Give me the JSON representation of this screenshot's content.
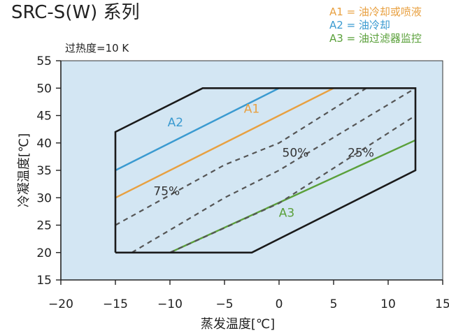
{
  "chart_data": {
    "type": "line",
    "title": "SRC-S(W) 系列",
    "xlabel": "蒸发温度[℃]",
    "ylabel": "冷凝温度[℃]",
    "xlim": [
      -20,
      15
    ],
    "ylim": [
      15,
      55
    ],
    "xticks": [
      -20,
      -15,
      -10,
      -5,
      0,
      5,
      10,
      15
    ],
    "yticks": [
      15,
      20,
      25,
      30,
      35,
      40,
      45,
      50,
      55
    ],
    "grid": false,
    "note": "过热度=10 K",
    "legend": {
      "position": "top-right",
      "items": [
        {
          "text": "A1 = 油冷却或喷液",
          "color": "#e8a040"
        },
        {
          "text": "A2 = 油冷却",
          "color": "#3a9ad0"
        },
        {
          "text": "A3 = 油过滤器监控",
          "color": "#5aa03a"
        }
      ]
    },
    "envelope": {
      "color": "#1a1a1a",
      "points": [
        [
          -15,
          20
        ],
        [
          -2.5,
          20
        ],
        [
          12.5,
          35
        ],
        [
          12.5,
          50
        ],
        [
          -7,
          50
        ],
        [
          -15,
          42
        ],
        [
          -15,
          20
        ]
      ]
    },
    "series": [
      {
        "name": "A2",
        "color": "#3a9ad0",
        "style": "solid",
        "points": [
          [
            -15,
            35
          ],
          [
            0,
            50
          ]
        ],
        "label_at": [
          -9.5,
          43
        ]
      },
      {
        "name": "A1",
        "color": "#e8a040",
        "style": "solid",
        "points": [
          [
            -15,
            30
          ],
          [
            5,
            50
          ]
        ],
        "label_at": [
          -2.5,
          45.5
        ]
      },
      {
        "name": "A3",
        "color": "#5aa03a",
        "style": "solid",
        "points": [
          [
            -10,
            20
          ],
          [
            12.5,
            40.5
          ]
        ],
        "label_at": [
          0.7,
          26.5
        ]
      },
      {
        "name": "75%",
        "color": "#555555",
        "style": "dashed",
        "points": [
          [
            -15,
            25
          ],
          [
            -5,
            36
          ],
          [
            0,
            40
          ],
          [
            8,
            50
          ]
        ],
        "label_at": [
          -10.3,
          30.5
        ]
      },
      {
        "name": "50%",
        "color": "#555555",
        "style": "dashed",
        "points": [
          [
            -13.5,
            20
          ],
          [
            -5,
            30
          ],
          [
            0,
            35
          ],
          [
            12.5,
            50
          ]
        ],
        "label_at": [
          1.5,
          37.5
        ]
      },
      {
        "name": "25%",
        "color": "#555555",
        "style": "dashed",
        "points": [
          [
            -10,
            20
          ],
          [
            0,
            29
          ],
          [
            12.5,
            45
          ]
        ],
        "label_at": [
          7.5,
          37.5
        ]
      }
    ]
  }
}
